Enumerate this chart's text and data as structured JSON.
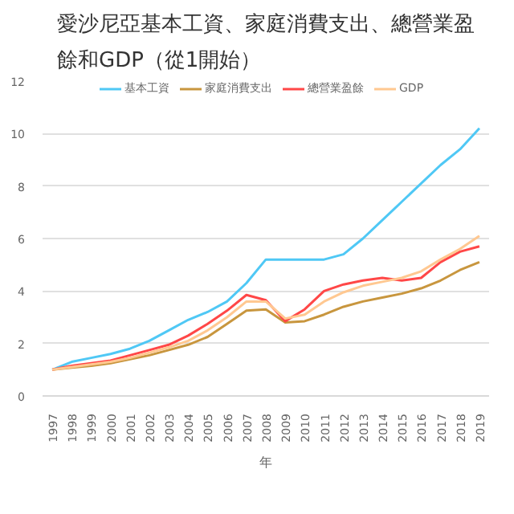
{
  "chart_data": {
    "type": "line",
    "title": "愛沙尼亞基本工資、家庭消費支出、總營業盈餘和GDP（從1開始）",
    "xlabel": "年",
    "categories": [
      "1997",
      "1998",
      "1999",
      "2000",
      "2001",
      "2002",
      "2003",
      "2004",
      "2005",
      "2006",
      "2007",
      "2008",
      "2009",
      "2010",
      "2011",
      "2012",
      "2013",
      "2014",
      "2015",
      "2016",
      "2017",
      "2018",
      "2019"
    ],
    "series": [
      {
        "name": "基本工資",
        "color": "#4fc8f5",
        "values": [
          1.0,
          1.3,
          1.45,
          1.6,
          1.8,
          2.1,
          2.5,
          2.9,
          3.2,
          3.6,
          4.3,
          5.2,
          5.2,
          5.2,
          5.2,
          5.4,
          6.0,
          6.7,
          7.4,
          8.1,
          8.8,
          9.4,
          10.2
        ]
      },
      {
        "name": "家庭消費支出",
        "color": "#c8963e",
        "values": [
          1.0,
          1.08,
          1.15,
          1.25,
          1.4,
          1.55,
          1.75,
          1.95,
          2.25,
          2.75,
          3.25,
          3.3,
          2.8,
          2.85,
          3.1,
          3.4,
          3.6,
          3.75,
          3.9,
          4.1,
          4.4,
          4.8,
          5.1
        ]
      },
      {
        "name": "總營業盈餘",
        "color": "#ff4747",
        "values": [
          1.0,
          1.15,
          1.25,
          1.35,
          1.55,
          1.75,
          1.95,
          2.3,
          2.75,
          3.25,
          3.85,
          3.65,
          2.85,
          3.3,
          4.0,
          4.25,
          4.4,
          4.5,
          4.4,
          4.5,
          5.1,
          5.5,
          5.7
        ]
      },
      {
        "name": "GDP",
        "color": "#ffc891",
        "values": [
          1.0,
          1.1,
          1.2,
          1.3,
          1.45,
          1.65,
          1.85,
          2.1,
          2.5,
          3.0,
          3.6,
          3.6,
          2.95,
          3.1,
          3.6,
          3.95,
          4.2,
          4.35,
          4.5,
          4.75,
          5.2,
          5.6,
          6.1
        ]
      }
    ],
    "ylim": [
      0,
      12
    ],
    "yticks": [
      0,
      2,
      4,
      6,
      8,
      10,
      12
    ],
    "grid": "y",
    "legend": "top"
  }
}
